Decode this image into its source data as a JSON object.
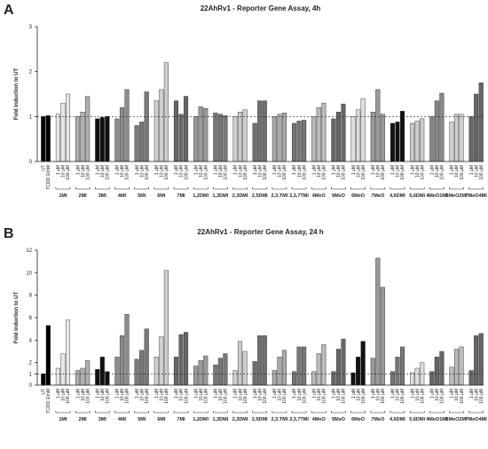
{
  "chart_data": [
    {
      "type": "bar",
      "panel": "A",
      "title": "22AhRv1 - Reporter Gene Assay, 4h",
      "y_label": "Fold induction to UT",
      "ylim": [
        0,
        3
      ],
      "yticks": [
        0,
        1,
        2,
        3
      ],
      "reference_line": 1,
      "dose_labels": [
        "1 µM",
        "10 µM",
        "100 µM"
      ],
      "control": {
        "labels": [
          "UT",
          "TCDD 10nM"
        ],
        "color": "#000000",
        "values": [
          1.0,
          1.02
        ]
      },
      "groups": [
        {
          "name": "1MI",
          "color": "#e6e6e6",
          "values": [
            1.05,
            1.3,
            1.5
          ]
        },
        {
          "name": "2MI",
          "color": "#b0b0b0",
          "values": [
            1.0,
            1.1,
            1.45
          ]
        },
        {
          "name": "3MI",
          "color": "#111111",
          "values": [
            0.95,
            0.98,
            1.0
          ]
        },
        {
          "name": "4MI",
          "color": "#8c8c8c",
          "values": [
            0.95,
            1.2,
            1.6
          ]
        },
        {
          "name": "5MI",
          "color": "#7a7a7a",
          "values": [
            0.8,
            0.88,
            1.55
          ]
        },
        {
          "name": "6MI",
          "color": "#d0d0d0",
          "values": [
            1.35,
            1.6,
            2.2
          ]
        },
        {
          "name": "7MI",
          "color": "#666666",
          "values": [
            1.35,
            1.05,
            1.45
          ]
        },
        {
          "name": "1,2DMI",
          "color": "#9a9a9a",
          "values": [
            1.0,
            1.22,
            1.18
          ]
        },
        {
          "name": "1,3DMI",
          "color": "#777777",
          "values": [
            1.08,
            1.05,
            1.02
          ]
        },
        {
          "name": "2,3DMI",
          "color": "#cccccc",
          "values": [
            1.0,
            1.1,
            1.15
          ]
        },
        {
          "name": "2,5DMI",
          "color": "#707070",
          "values": [
            0.85,
            1.35,
            1.35
          ]
        },
        {
          "name": "2,3,TMI",
          "color": "#aaaaaa",
          "values": [
            1.0,
            1.05,
            1.08
          ]
        },
        {
          "name": "2,3,7TMI",
          "color": "#777777",
          "values": [
            0.85,
            0.9,
            0.92
          ]
        },
        {
          "name": "4MeO",
          "color": "#bbbbbb",
          "values": [
            1.0,
            1.2,
            1.3
          ]
        },
        {
          "name": "5MeO",
          "color": "#666666",
          "values": [
            0.95,
            1.1,
            1.28
          ]
        },
        {
          "name": "6MeO",
          "color": "#dddddd",
          "values": [
            1.0,
            1.15,
            1.4
          ]
        },
        {
          "name": "7MeO",
          "color": "#999999",
          "values": [
            1.1,
            1.6,
            1.05
          ]
        },
        {
          "name": "4,6DMI",
          "color": "#111111",
          "values": [
            0.85,
            0.88,
            1.12
          ]
        },
        {
          "name": "5,6DMI",
          "color": "#cccccc",
          "values": [
            0.85,
            0.9,
            0.95
          ]
        },
        {
          "name": "4MeO1MI",
          "color": "#888888",
          "values": [
            1.0,
            1.35,
            1.52
          ]
        },
        {
          "name": "5MeO2MI",
          "color": "#cfcfcf",
          "values": [
            0.88,
            1.05,
            1.05
          ]
        },
        {
          "name": "7MeO4MI",
          "color": "#666666",
          "values": [
            1.0,
            1.5,
            1.75
          ]
        }
      ]
    },
    {
      "type": "bar",
      "panel": "B",
      "title": "22AhRv1 - Reporter Gene Assay, 24 h",
      "y_label": "Fold induction to UT",
      "ylim": [
        0,
        12
      ],
      "yticks": [
        0,
        1,
        2,
        4,
        6,
        8,
        10,
        12
      ],
      "reference_line": 1,
      "dose_labels": [
        "1 µM",
        "10 µM",
        "100 µM"
      ],
      "control": {
        "labels": [
          "UT",
          "TCDD 10nM"
        ],
        "color": "#000000",
        "values": [
          1.0,
          5.3
        ]
      },
      "groups": [
        {
          "name": "1MI",
          "color": "#e6e6e6",
          "values": [
            1.5,
            2.8,
            5.8
          ]
        },
        {
          "name": "2MI",
          "color": "#b0b0b0",
          "values": [
            1.3,
            1.5,
            2.2
          ]
        },
        {
          "name": "3MI",
          "color": "#111111",
          "values": [
            1.4,
            2.5,
            1.2
          ]
        },
        {
          "name": "4MI",
          "color": "#8c8c8c",
          "values": [
            2.5,
            4.4,
            6.3
          ]
        },
        {
          "name": "5MI",
          "color": "#7a7a7a",
          "values": [
            2.3,
            3.1,
            5.0
          ]
        },
        {
          "name": "6MI",
          "color": "#d0d0d0",
          "values": [
            2.5,
            4.3,
            10.2
          ]
        },
        {
          "name": "7MI",
          "color": "#666666",
          "values": [
            2.5,
            4.5,
            4.7
          ]
        },
        {
          "name": "1,2DMI",
          "color": "#9a9a9a",
          "values": [
            1.7,
            2.2,
            2.6
          ]
        },
        {
          "name": "1,3DMI",
          "color": "#777777",
          "values": [
            1.8,
            2.4,
            2.8
          ]
        },
        {
          "name": "2,3DMI",
          "color": "#cccccc",
          "values": [
            1.3,
            3.9,
            3.0
          ]
        },
        {
          "name": "2,5DMI",
          "color": "#707070",
          "values": [
            2.1,
            4.4,
            4.4
          ]
        },
        {
          "name": "2,3,TMI",
          "color": "#aaaaaa",
          "values": [
            1.3,
            2.5,
            3.1
          ]
        },
        {
          "name": "2,3,7TMI",
          "color": "#777777",
          "values": [
            1.2,
            3.4,
            3.4
          ]
        },
        {
          "name": "4MeO",
          "color": "#bbbbbb",
          "values": [
            1.2,
            2.8,
            3.6
          ]
        },
        {
          "name": "5MeO",
          "color": "#666666",
          "values": [
            1.2,
            3.2,
            4.1
          ]
        },
        {
          "name": "6MeO",
          "color": "#111111",
          "values": [
            1.1,
            2.5,
            3.9
          ]
        },
        {
          "name": "7MeO",
          "color": "#999999",
          "values": [
            2.4,
            11.3,
            8.7
          ]
        },
        {
          "name": "4,6DMI",
          "color": "#777777",
          "values": [
            1.2,
            2.5,
            3.4
          ]
        },
        {
          "name": "5,6DMI",
          "color": "#dddddd",
          "values": [
            1.1,
            1.5,
            2.0
          ]
        },
        {
          "name": "4MeO1MI",
          "color": "#666666",
          "values": [
            1.2,
            2.5,
            3.0
          ]
        },
        {
          "name": "5MeO2MI",
          "color": "#bbbbbb",
          "values": [
            1.6,
            3.2,
            3.4
          ]
        },
        {
          "name": "7MeO4MI",
          "color": "#666666",
          "values": [
            1.3,
            4.4,
            4.6
          ]
        }
      ]
    }
  ]
}
